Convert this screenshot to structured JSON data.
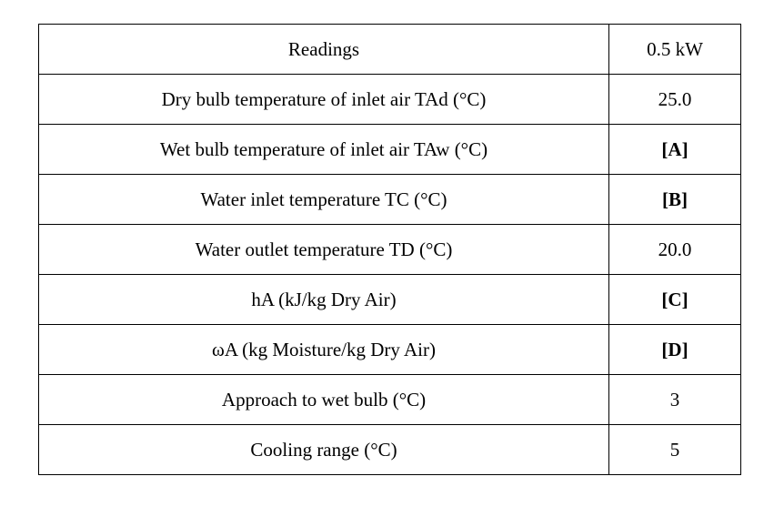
{
  "table": {
    "header": {
      "label": "Readings",
      "value": "0.5 kW"
    },
    "rows": [
      {
        "label": "Dry bulb temperature of inlet air TAd (°C)",
        "value": "25.0",
        "bold": false
      },
      {
        "label": "Wet bulb temperature of inlet air TAw  (°C)",
        "value": "[A]",
        "bold": true
      },
      {
        "label": "Water inlet temperature TC (°C)",
        "value": "[B]",
        "bold": true
      },
      {
        "label": "Water outlet temperature TD (°C)",
        "value": "20.0",
        "bold": false
      },
      {
        "label": "hA (kJ/kg Dry Air)",
        "value": "[C]",
        "bold": true
      },
      {
        "label": "ωA (kg Moisture/kg Dry Air)",
        "value": "[D]",
        "bold": true
      },
      {
        "label": "Approach to wet bulb (°C)",
        "value": "3",
        "bold": false
      },
      {
        "label": "Cooling range (°C)",
        "value": "5",
        "bold": false
      }
    ]
  }
}
